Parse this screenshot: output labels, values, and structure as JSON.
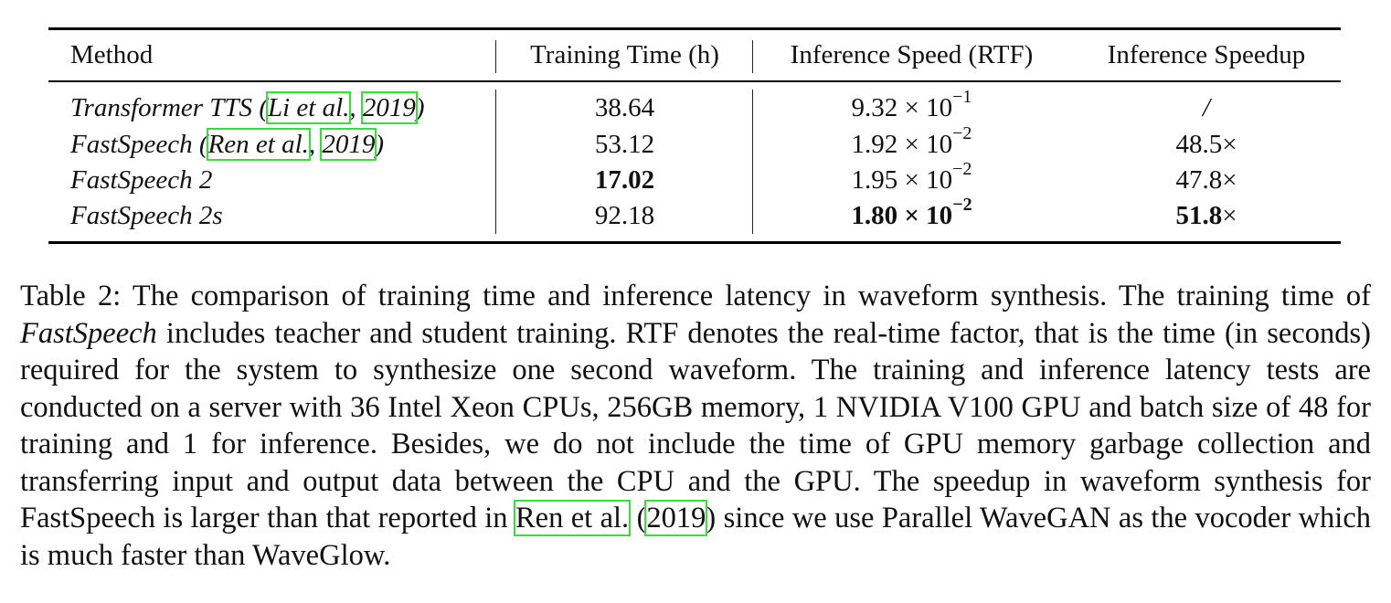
{
  "table": {
    "headers": [
      "Method",
      "Training Time (h)",
      "Inference Speed (RTF)",
      "Inference Speedup"
    ],
    "rows": [
      {
        "method": "Transformer TTS",
        "cite_open": " (",
        "cite_author": "Li et al.",
        "cite_sep": ", ",
        "cite_year": "2019",
        "cite_close": ")",
        "training_time": "38.64",
        "rtf_mantissa": "9.32 × 10",
        "rtf_exp": "−1",
        "speedup": "/"
      },
      {
        "method": "FastSpeech",
        "cite_open": " (",
        "cite_author": "Ren et al.",
        "cite_sep": ", ",
        "cite_year": "2019",
        "cite_close": ")",
        "training_time": "53.12",
        "rtf_mantissa": "1.92 × 10",
        "rtf_exp": "−2",
        "speedup": "48.5×"
      },
      {
        "method": "FastSpeech 2",
        "training_time": "17.02",
        "rtf_mantissa": "1.95 × 10",
        "rtf_exp": "−2",
        "speedup": "47.8×"
      },
      {
        "method": "FastSpeech 2s",
        "training_time": "92.18",
        "rtf_mantissa": "1.80 × 10",
        "rtf_exp": "−2",
        "speedup_bold": "51.8",
        "speedup_suffix": "×"
      }
    ]
  },
  "caption": {
    "part1": "Table 2: The comparison of training time and inference latency in waveform synthesis. The training time of ",
    "part1_italic": "FastSpeech",
    "part2": " includes teacher and student training. RTF denotes the real-time factor, that is the time (in seconds) required for the system to synthesize one second waveform. The training and inference latency tests are conducted on a server with 36 Intel Xeon CPUs, 256GB memory, 1 NVIDIA V100 GPU and batch size of 48 for training and 1 for inference. Besides, we do not include the time of GPU memory garbage collection and transferring input and output data between the CPU and the GPU. The speedup in waveform synthesis for FastSpeech is larger than that reported in ",
    "cite_author": "Ren et al.",
    "cite_open": " (",
    "cite_year": "2019",
    "cite_close": ")",
    "part3": " since we use Parallel WaveGAN as the vocoder which is much faster than WaveGlow."
  }
}
